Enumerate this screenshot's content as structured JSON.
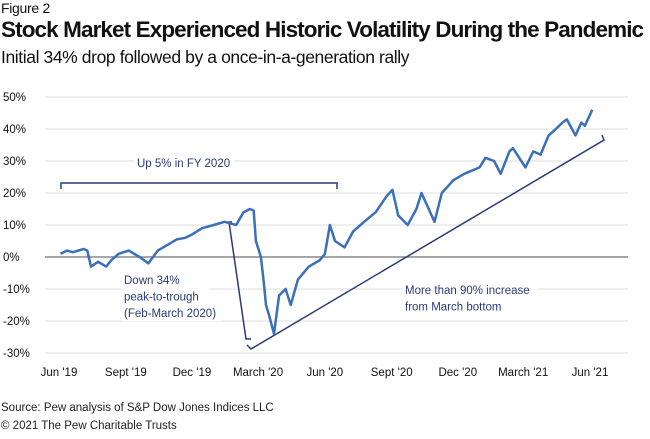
{
  "figure_label": "Figure 2",
  "title": "Stock Market Experienced Historic Volatility During the Pandemic",
  "subtitle": "Initial 34% drop followed by a once-in-a-generation rally",
  "footer": {
    "source": "Source: Pew analysis of S&P Dow Jones Indices LLC",
    "copyright": "© 2021 The Pew Charitable Trusts"
  },
  "colors": {
    "line": "#3a6fba",
    "annotation": "#2a3a7a",
    "grid": "#dddddd",
    "zero_line": "#888888"
  },
  "chart_data": {
    "type": "line",
    "title": "Stock Market Experienced Historic Volatility During the Pandemic",
    "xlabel": "",
    "ylabel": "",
    "ylim": [
      -30,
      50
    ],
    "xlim": [
      "2019-06-01",
      "2021-06-01"
    ],
    "grid": true,
    "y_ticks": [
      50,
      40,
      30,
      20,
      10,
      0,
      -10,
      -20,
      -30
    ],
    "y_tick_labels": [
      "50%",
      "40%",
      "30%",
      "20%",
      "10%",
      "0%",
      "-10%",
      "-20%",
      "-30%"
    ],
    "x_ticks": [
      "2019-06-01",
      "2019-09-01",
      "2019-12-01",
      "2020-03-01",
      "2020-06-01",
      "2020-09-01",
      "2020-12-01",
      "2021-03-01",
      "2021-06-01"
    ],
    "x_tick_labels": [
      "Jun '19",
      "Sept '19",
      "Dec '19",
      "March '20",
      "Jun '20",
      "Sept '20",
      "Dec '20",
      "March '21",
      "Jun '21"
    ],
    "series": [
      {
        "x": [
          "2019-06-03",
          "2019-06-12",
          "2019-06-20",
          "2019-07-05",
          "2019-07-10",
          "2019-07-15",
          "2019-07-25",
          "2019-08-05",
          "2019-08-12",
          "2019-08-22",
          "2019-09-05",
          "2019-09-20",
          "2019-10-02",
          "2019-10-15",
          "2019-10-30",
          "2019-11-10",
          "2019-11-22",
          "2019-12-01",
          "2019-12-15",
          "2019-12-31",
          "2020-01-15",
          "2020-01-31",
          "2020-02-10",
          "2020-02-19",
          "2020-02-24",
          "2020-02-27",
          "2020-03-05",
          "2020-03-09",
          "2020-03-12",
          "2020-03-16",
          "2020-03-23",
          "2020-03-30",
          "2020-04-08",
          "2020-04-15",
          "2020-04-25",
          "2020-05-10",
          "2020-05-25",
          "2020-06-01",
          "2020-06-08",
          "2020-06-15",
          "2020-06-28",
          "2020-07-10",
          "2020-07-25",
          "2020-08-10",
          "2020-08-25",
          "2020-09-02",
          "2020-09-10",
          "2020-09-23",
          "2020-10-05",
          "2020-10-12",
          "2020-10-22",
          "2020-10-30",
          "2020-11-09",
          "2020-11-25",
          "2020-12-10",
          "2020-12-31",
          "2021-01-08",
          "2021-01-20",
          "2021-01-29",
          "2021-02-10",
          "2021-02-15",
          "2021-03-04",
          "2021-03-15",
          "2021-03-25",
          "2021-04-05",
          "2021-04-15",
          "2021-04-24",
          "2021-04-30",
          "2021-05-12",
          "2021-05-20",
          "2021-05-25",
          "2021-06-04"
        ],
        "values": [
          1,
          2,
          1.5,
          2.5,
          2,
          -3,
          -1.5,
          -3,
          -1,
          1,
          2,
          0,
          -2,
          2,
          4,
          5.5,
          6,
          7,
          9,
          10,
          11,
          10,
          14,
          15,
          14.5,
          5,
          0,
          -8,
          -15,
          -18,
          -24,
          -12,
          -10,
          -15,
          -7,
          -3,
          -1,
          1,
          10,
          5,
          3,
          8,
          11,
          14,
          19,
          21,
          13,
          10,
          15,
          20,
          15,
          11,
          20,
          24,
          26,
          28,
          31,
          30,
          26,
          33,
          34,
          28,
          33,
          32,
          38,
          40,
          42,
          43,
          38,
          42,
          41,
          46
        ]
      }
    ],
    "annotations": [
      {
        "text": "Up 5% in FY 2020"
      },
      {
        "text": [
          "Down 34%",
          "peak-to-trough",
          "(Feb-March 2020)"
        ]
      },
      {
        "text": [
          "More than 90% increase",
          "from March bottom"
        ]
      }
    ]
  }
}
